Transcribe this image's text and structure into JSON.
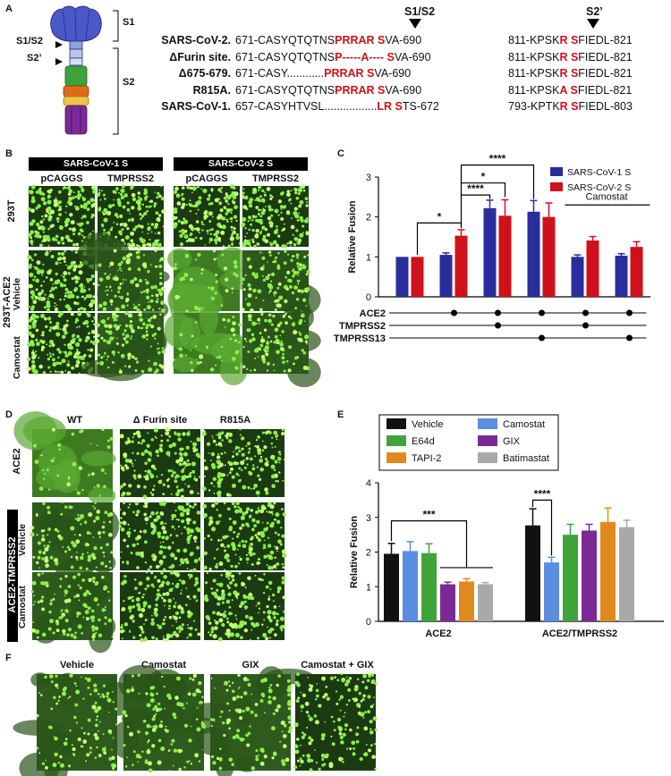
{
  "panels": {
    "A": "A",
    "B": "B",
    "C": "C",
    "D": "D",
    "E": "E",
    "F": "F"
  },
  "panelA": {
    "s1": "S1",
    "s2": "S2",
    "s1s2_side": "S1/S2",
    "s2prime_side": "S2’",
    "col_s1s2": "S1/S2",
    "col_s2prime": "S2’",
    "rows": [
      {
        "name": "SARS-CoV-2.",
        "left": [
          [
            "671-CASYQTQTNS",
            0
          ],
          [
            "PRRAR S",
            1
          ],
          [
            "VA-690",
            0
          ]
        ],
        "right": [
          [
            "811-KPSK",
            0
          ],
          [
            "R S",
            1
          ],
          [
            "FIEDL-821",
            0
          ]
        ]
      },
      {
        "name": "ΔFurin site.",
        "left": [
          [
            "671-CASYQTQTNS",
            0
          ],
          [
            "P",
            1
          ],
          [
            "-----",
            1
          ],
          [
            "A",
            1
          ],
          [
            "----",
            1
          ],
          [
            " S",
            1
          ],
          [
            "VA-690",
            0
          ]
        ],
        "right": [
          [
            "811-KPSK",
            0
          ],
          [
            "R S",
            1
          ],
          [
            "FIEDL-821",
            0
          ]
        ]
      },
      {
        "name": "Δ675-679.",
        "left": [
          [
            "671-CASY",
            0
          ],
          [
            "............",
            0
          ],
          [
            "PRRAR S",
            1
          ],
          [
            "VA-690",
            0
          ]
        ],
        "right": [
          [
            "811-KPSK",
            0
          ],
          [
            "R S",
            1
          ],
          [
            "FIEDL-821",
            0
          ]
        ]
      },
      {
        "name": "R815A.",
        "left": [
          [
            "671-CASYQTQTNS",
            0
          ],
          [
            "PRRAR S",
            1
          ],
          [
            "VA-690",
            0
          ]
        ],
        "right": [
          [
            "811-KPSK",
            0
          ],
          [
            "A S",
            1
          ],
          [
            "FIEDL-821",
            0
          ]
        ]
      },
      {
        "name": "SARS-CoV-1.",
        "left": [
          [
            "657-CASYHTVSL",
            0
          ],
          [
            ".................",
            0
          ],
          [
            "LR S",
            1
          ],
          [
            "TS-672",
            0
          ]
        ],
        "right": [
          [
            "793-KPTK",
            0
          ],
          [
            "R S",
            1
          ],
          [
            "FIEDL-803",
            0
          ]
        ]
      }
    ]
  },
  "panelB": {
    "groups": [
      "SARS-CoV-1 S",
      "SARS-CoV-2 S"
    ],
    "cols": [
      "pCAGGS",
      "TMPRSS2",
      "pCAGGS",
      "TMPRSS2"
    ],
    "row_293t": "293T",
    "row_ace2": "293T-ACE2",
    "row_vehicle": "Vehicle",
    "row_camostat": "Camostat"
  },
  "panelD": {
    "cols": [
      "WT",
      "Δ Furin site",
      "R815A"
    ],
    "row_ace2": "ACE2",
    "row_tmprss2": "ACE2-TMPRSS2",
    "row_vehicle": "Vehicle",
    "row_camostat": "Camostat"
  },
  "panelF": {
    "cols": [
      "Vehicle",
      "Camostat",
      "GIX",
      "Camostat + GIX"
    ]
  },
  "colors": {
    "sarscov1": "#2a2d9c",
    "sarscov2": "#d0101b",
    "vehicle": "#111111",
    "camostat": "#5b8ee0",
    "e64d": "#3fa43a",
    "gix": "#7b2a95",
    "tapi2": "#e08a1e",
    "batimastat": "#a9a9a9",
    "micro_bg": "#2f5a1d",
    "micro_spot": "#7ee83a"
  },
  "chart_data": [
    {
      "type": "bar",
      "ylabel": "Relative Fusion",
      "ylim": [
        0,
        3
      ],
      "yticks": [
        "0",
        "1",
        "2",
        "3"
      ],
      "series": [
        {
          "name": "SARS-CoV-1 S",
          "values": [
            1.0,
            1.05,
            2.22,
            2.13,
            1.0,
            1.03
          ],
          "errors": [
            0,
            0.05,
            0.2,
            0.28,
            0.05,
            0.05
          ]
        },
        {
          "name": "SARS-CoV-2 S",
          "values": [
            1.0,
            1.53,
            2.03,
            2.0,
            1.41,
            1.25
          ],
          "errors": [
            0,
            0.15,
            0.4,
            0.35,
            0.1,
            0.13
          ]
        }
      ],
      "conditions": {
        "ACE2": [
          0,
          1,
          1,
          1,
          1,
          1
        ],
        "TMPRSS2": [
          0,
          0,
          1,
          0,
          1,
          0
        ],
        "TMPRSS13": [
          0,
          0,
          0,
          1,
          0,
          1
        ]
      },
      "row_labels": [
        "ACE2",
        "TMPRSS2",
        "TMPRSS13"
      ],
      "group_label": "Camostat",
      "significance": [
        "*",
        "****",
        "*",
        "****"
      ]
    },
    {
      "type": "bar",
      "ylabel": "Relative Fusion",
      "ylim": [
        0,
        4
      ],
      "yticks": [
        "0",
        "1",
        "2",
        "3",
        "4"
      ],
      "categories": [
        "ACE2",
        "ACE2/TMPRSS2"
      ],
      "series": [
        {
          "name": "Vehicle",
          "values": [
            1.95,
            2.77
          ],
          "errors": [
            0.3,
            0.48
          ]
        },
        {
          "name": "Camostat",
          "values": [
            2.03,
            1.7
          ],
          "errors": [
            0.27,
            0.15
          ]
        },
        {
          "name": "E64d",
          "values": [
            1.97,
            2.5
          ],
          "errors": [
            0.27,
            0.3
          ]
        },
        {
          "name": "GIX",
          "values": [
            1.07,
            2.62
          ],
          "errors": [
            0.06,
            0.18
          ]
        },
        {
          "name": "TAPI-2",
          "values": [
            1.15,
            2.87
          ],
          "errors": [
            0.08,
            0.4
          ]
        },
        {
          "name": "Batimastat",
          "values": [
            1.07,
            2.72
          ],
          "errors": [
            0.05,
            0.2
          ]
        }
      ],
      "significance": [
        "***",
        "****"
      ]
    }
  ]
}
